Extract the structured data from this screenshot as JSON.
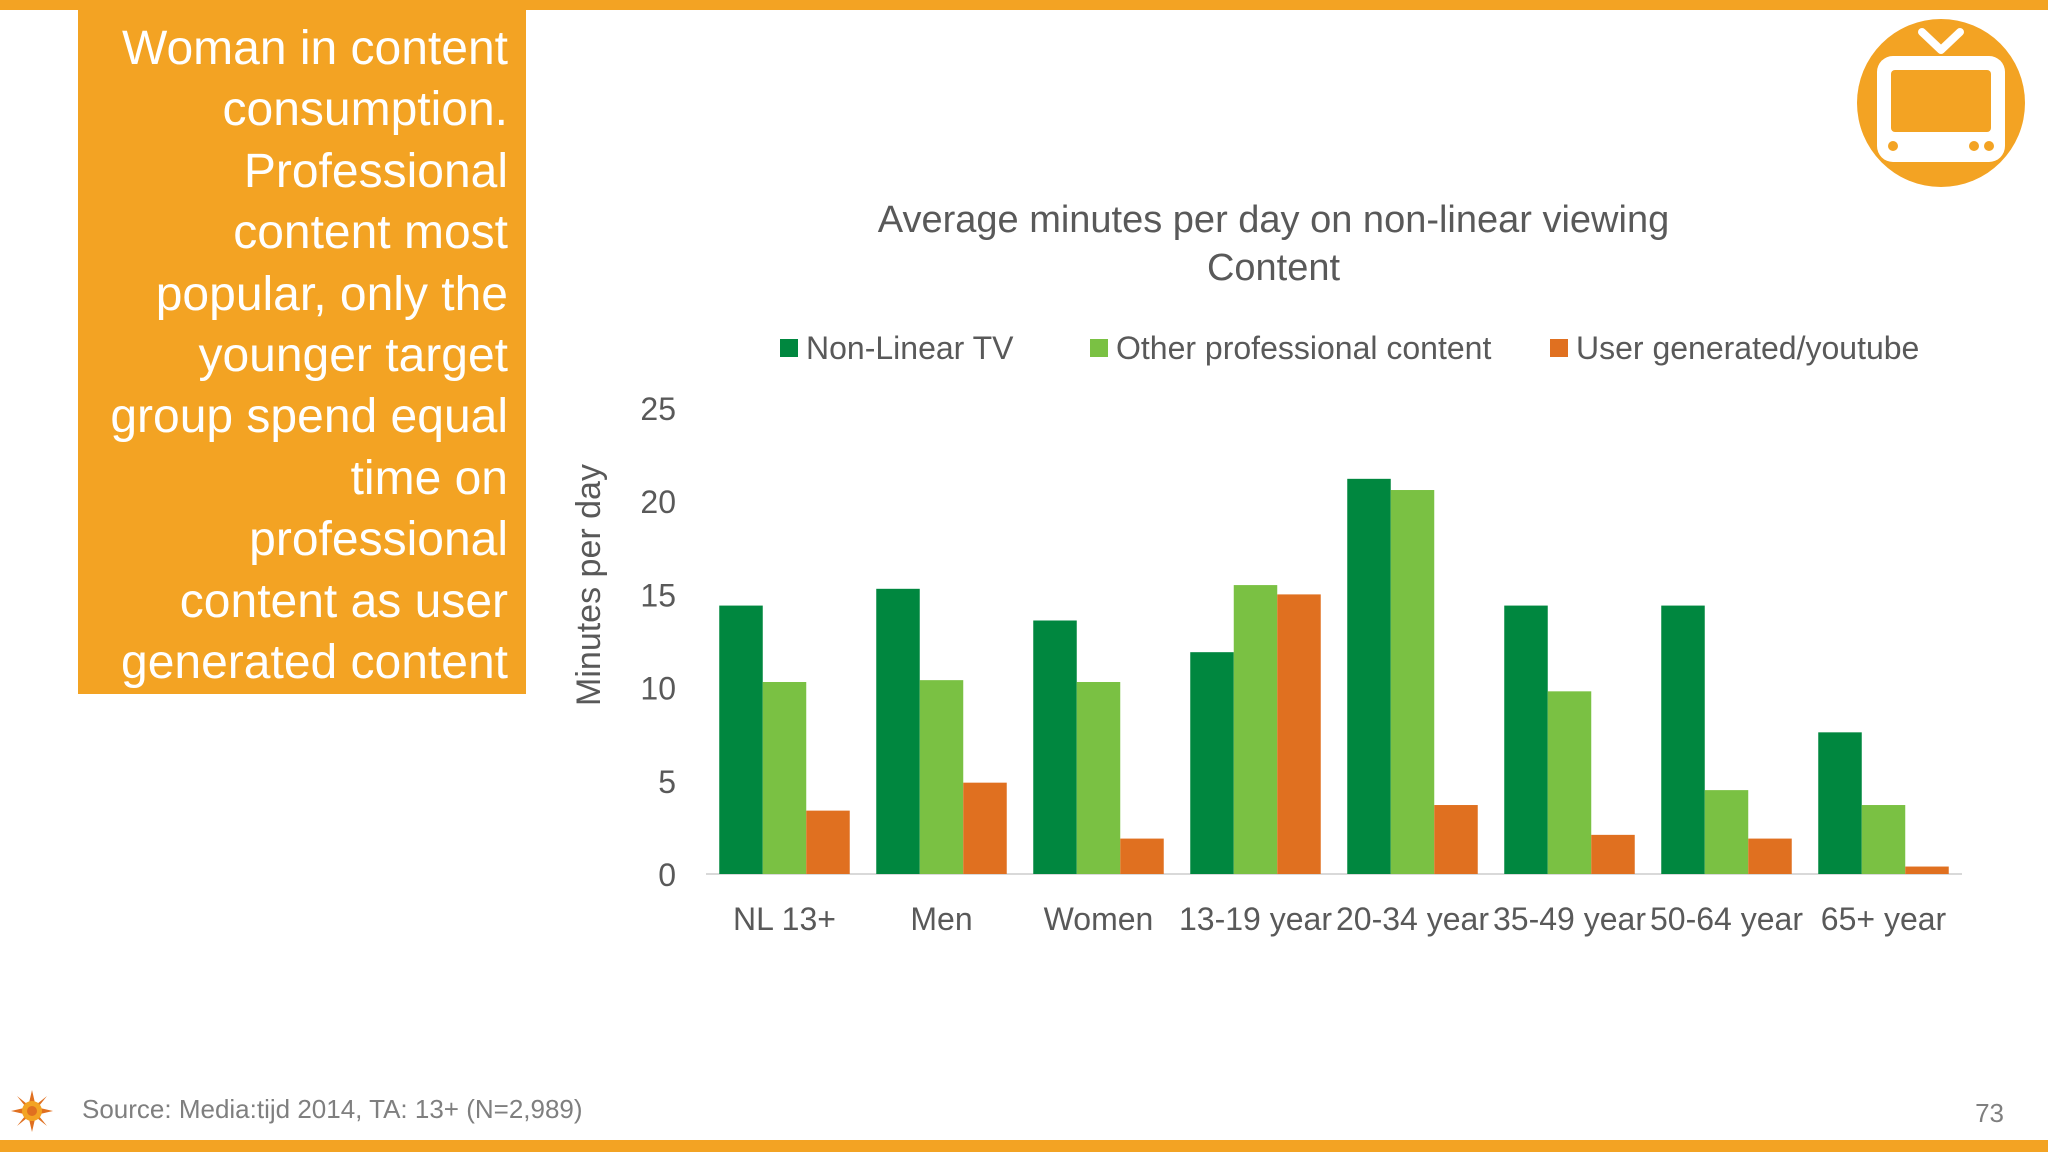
{
  "headline": "Woman in content consumption. Professional content most popular, only the younger target group spend equal time on professional content as user generated content",
  "headline_lines": [
    "Woman in content",
    "consumption.",
    "Professional",
    "content most",
    "popular, only the",
    "younger target",
    "group spend equal",
    "time on",
    "professional",
    "content as user",
    "generated content"
  ],
  "icon": "tv-icon",
  "colors": {
    "accent": "#f3a323",
    "non_linear_tv": "#00873f",
    "other_professional": "#7ac143",
    "user_generated": "#e07020",
    "text_gray": "#595959"
  },
  "chart_data": {
    "type": "bar",
    "title": "Average minutes per day on non-linear viewing Content",
    "title_lines": [
      "Average minutes per day on non-linear viewing",
      "Content"
    ],
    "ylabel": "Minutes per day",
    "xlabel": "",
    "ylim": [
      0,
      25
    ],
    "yticks": [
      "0",
      "5",
      "10",
      "15",
      "20",
      "25"
    ],
    "grid": false,
    "legend_position": "top",
    "categories": [
      "NL 13+",
      "Men",
      "Women",
      "13-19 year",
      "20-34 year",
      "35-49 year",
      "50-64 year",
      "65+ year"
    ],
    "series": [
      {
        "name": "Non-Linear TV",
        "color": "#00873f",
        "values": [
          14.4,
          15.3,
          13.6,
          11.9,
          21.2,
          14.4,
          14.4,
          7.6
        ]
      },
      {
        "name": "Other professional content",
        "color": "#7ac143",
        "values": [
          10.3,
          10.4,
          10.3,
          15.5,
          20.6,
          9.8,
          4.5,
          3.7
        ]
      },
      {
        "name": "User generated/youtube",
        "color": "#e07020",
        "values": [
          3.4,
          4.9,
          1.9,
          15.0,
          3.7,
          2.1,
          1.9,
          0.4
        ]
      }
    ]
  },
  "footer": {
    "source": "Source: Media:tijd 2014, TA: 13+ (N=2,989)",
    "page_number": "73"
  }
}
